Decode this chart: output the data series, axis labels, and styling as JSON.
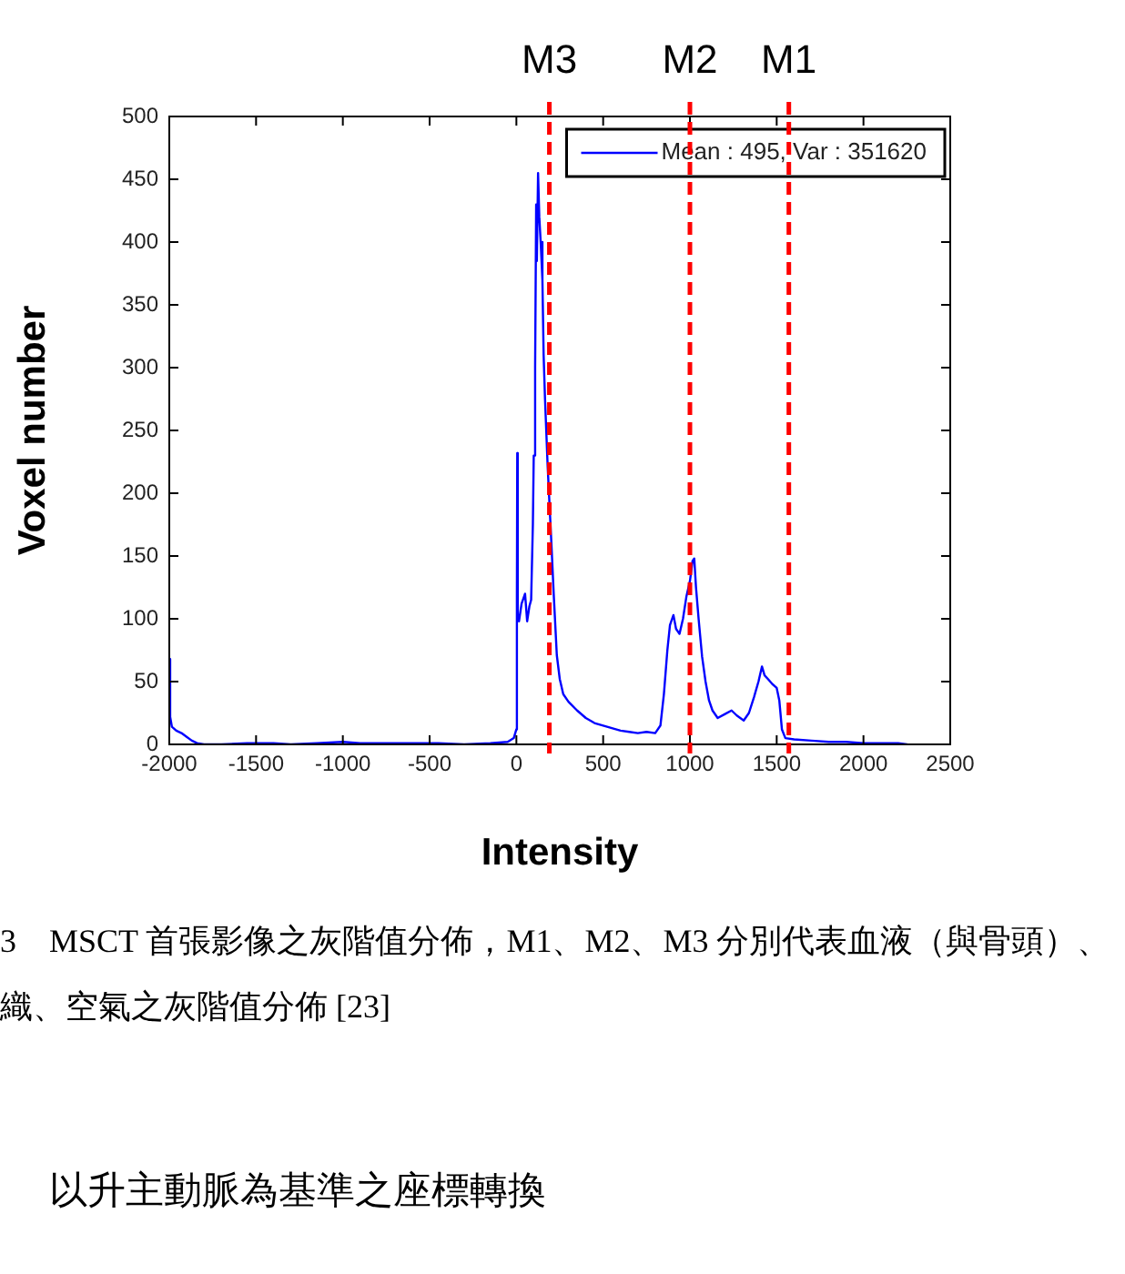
{
  "chart_data": {
    "type": "line",
    "xlabel": "Intensity",
    "ylabel": "Voxel number",
    "x": [
      -2000,
      -1995,
      -1985,
      -1960,
      -1930,
      -1900,
      -1870,
      -1840,
      -1800,
      -1700,
      -1550,
      -1400,
      -1300,
      -1150,
      -1000,
      -900,
      -750,
      -600,
      -450,
      -300,
      -150,
      -50,
      -15,
      0,
      3,
      5,
      8,
      15,
      30,
      50,
      62,
      75,
      85,
      95,
      100,
      108,
      114,
      118,
      125,
      132,
      140,
      150,
      157,
      165,
      180,
      200,
      215,
      233,
      250,
      270,
      300,
      350,
      400,
      450,
      500,
      550,
      600,
      650,
      700,
      750,
      800,
      830,
      850,
      870,
      885,
      905,
      920,
      940,
      960,
      980,
      1000,
      1015,
      1025,
      1035,
      1050,
      1070,
      1090,
      1110,
      1130,
      1160,
      1200,
      1240,
      1270,
      1310,
      1340,
      1370,
      1395,
      1415,
      1430,
      1450,
      1475,
      1500,
      1515,
      1530,
      1550,
      1600,
      1700,
      1800,
      1900,
      2000,
      2100,
      2200,
      2250
    ],
    "series": [
      {
        "name": "Mean : 495, Var : 351620",
        "color": "#0000ff",
        "values": [
          68,
          22,
          14,
          11,
          9,
          6,
          3,
          1,
          0,
          0,
          1,
          1,
          0,
          1,
          2,
          1,
          1,
          1,
          1,
          0,
          1,
          2,
          5,
          12,
          120,
          232,
          100,
          98,
          112,
          120,
          98,
          110,
          115,
          175,
          230,
          300,
          430,
          385,
          455,
          420,
          400,
          370,
          310,
          275,
          222,
          165,
          120,
          71,
          52,
          40,
          34,
          27,
          21,
          17,
          15,
          13,
          11,
          10,
          9,
          10,
          9,
          15,
          40,
          75,
          95,
          103,
          92,
          88,
          100,
          118,
          130,
          146,
          148,
          125,
          100,
          70,
          50,
          35,
          27,
          21,
          24,
          27,
          23,
          19,
          25,
          38,
          50,
          62,
          55,
          52,
          48,
          45,
          35,
          12,
          5,
          4,
          3,
          2,
          2,
          1,
          1,
          1,
          0
        ]
      }
    ],
    "xlim": [
      -2000,
      2500
    ],
    "xticks": [
      -2000,
      -1500,
      -1000,
      -500,
      0,
      500,
      1000,
      1500,
      2000,
      2500
    ],
    "ylim": [
      0,
      500
    ],
    "yticks": [
      0,
      50,
      100,
      150,
      200,
      250,
      300,
      350,
      400,
      450,
      500
    ],
    "ref_lines": [
      {
        "axis": "x",
        "value": 190,
        "label": "M3",
        "color": "#ff0000",
        "line_style": "dashed"
      },
      {
        "axis": "x",
        "value": 1000,
        "label": "M2",
        "color": "#ff0000",
        "line_style": "dashed"
      },
      {
        "axis": "x",
        "value": 1570,
        "label": "M1",
        "color": "#ff0000",
        "line_style": "dashed"
      }
    ],
    "legend": "top right",
    "line_style": "solid",
    "annotations": [
      "3　MSCT 首張影像之灰階值分佈，M1、M2、M3 分別代表血液（與骨頭）、",
      "織、空氣之灰階值分佈 [23]",
      "以升主動脈為基準之座標轉換"
    ]
  }
}
